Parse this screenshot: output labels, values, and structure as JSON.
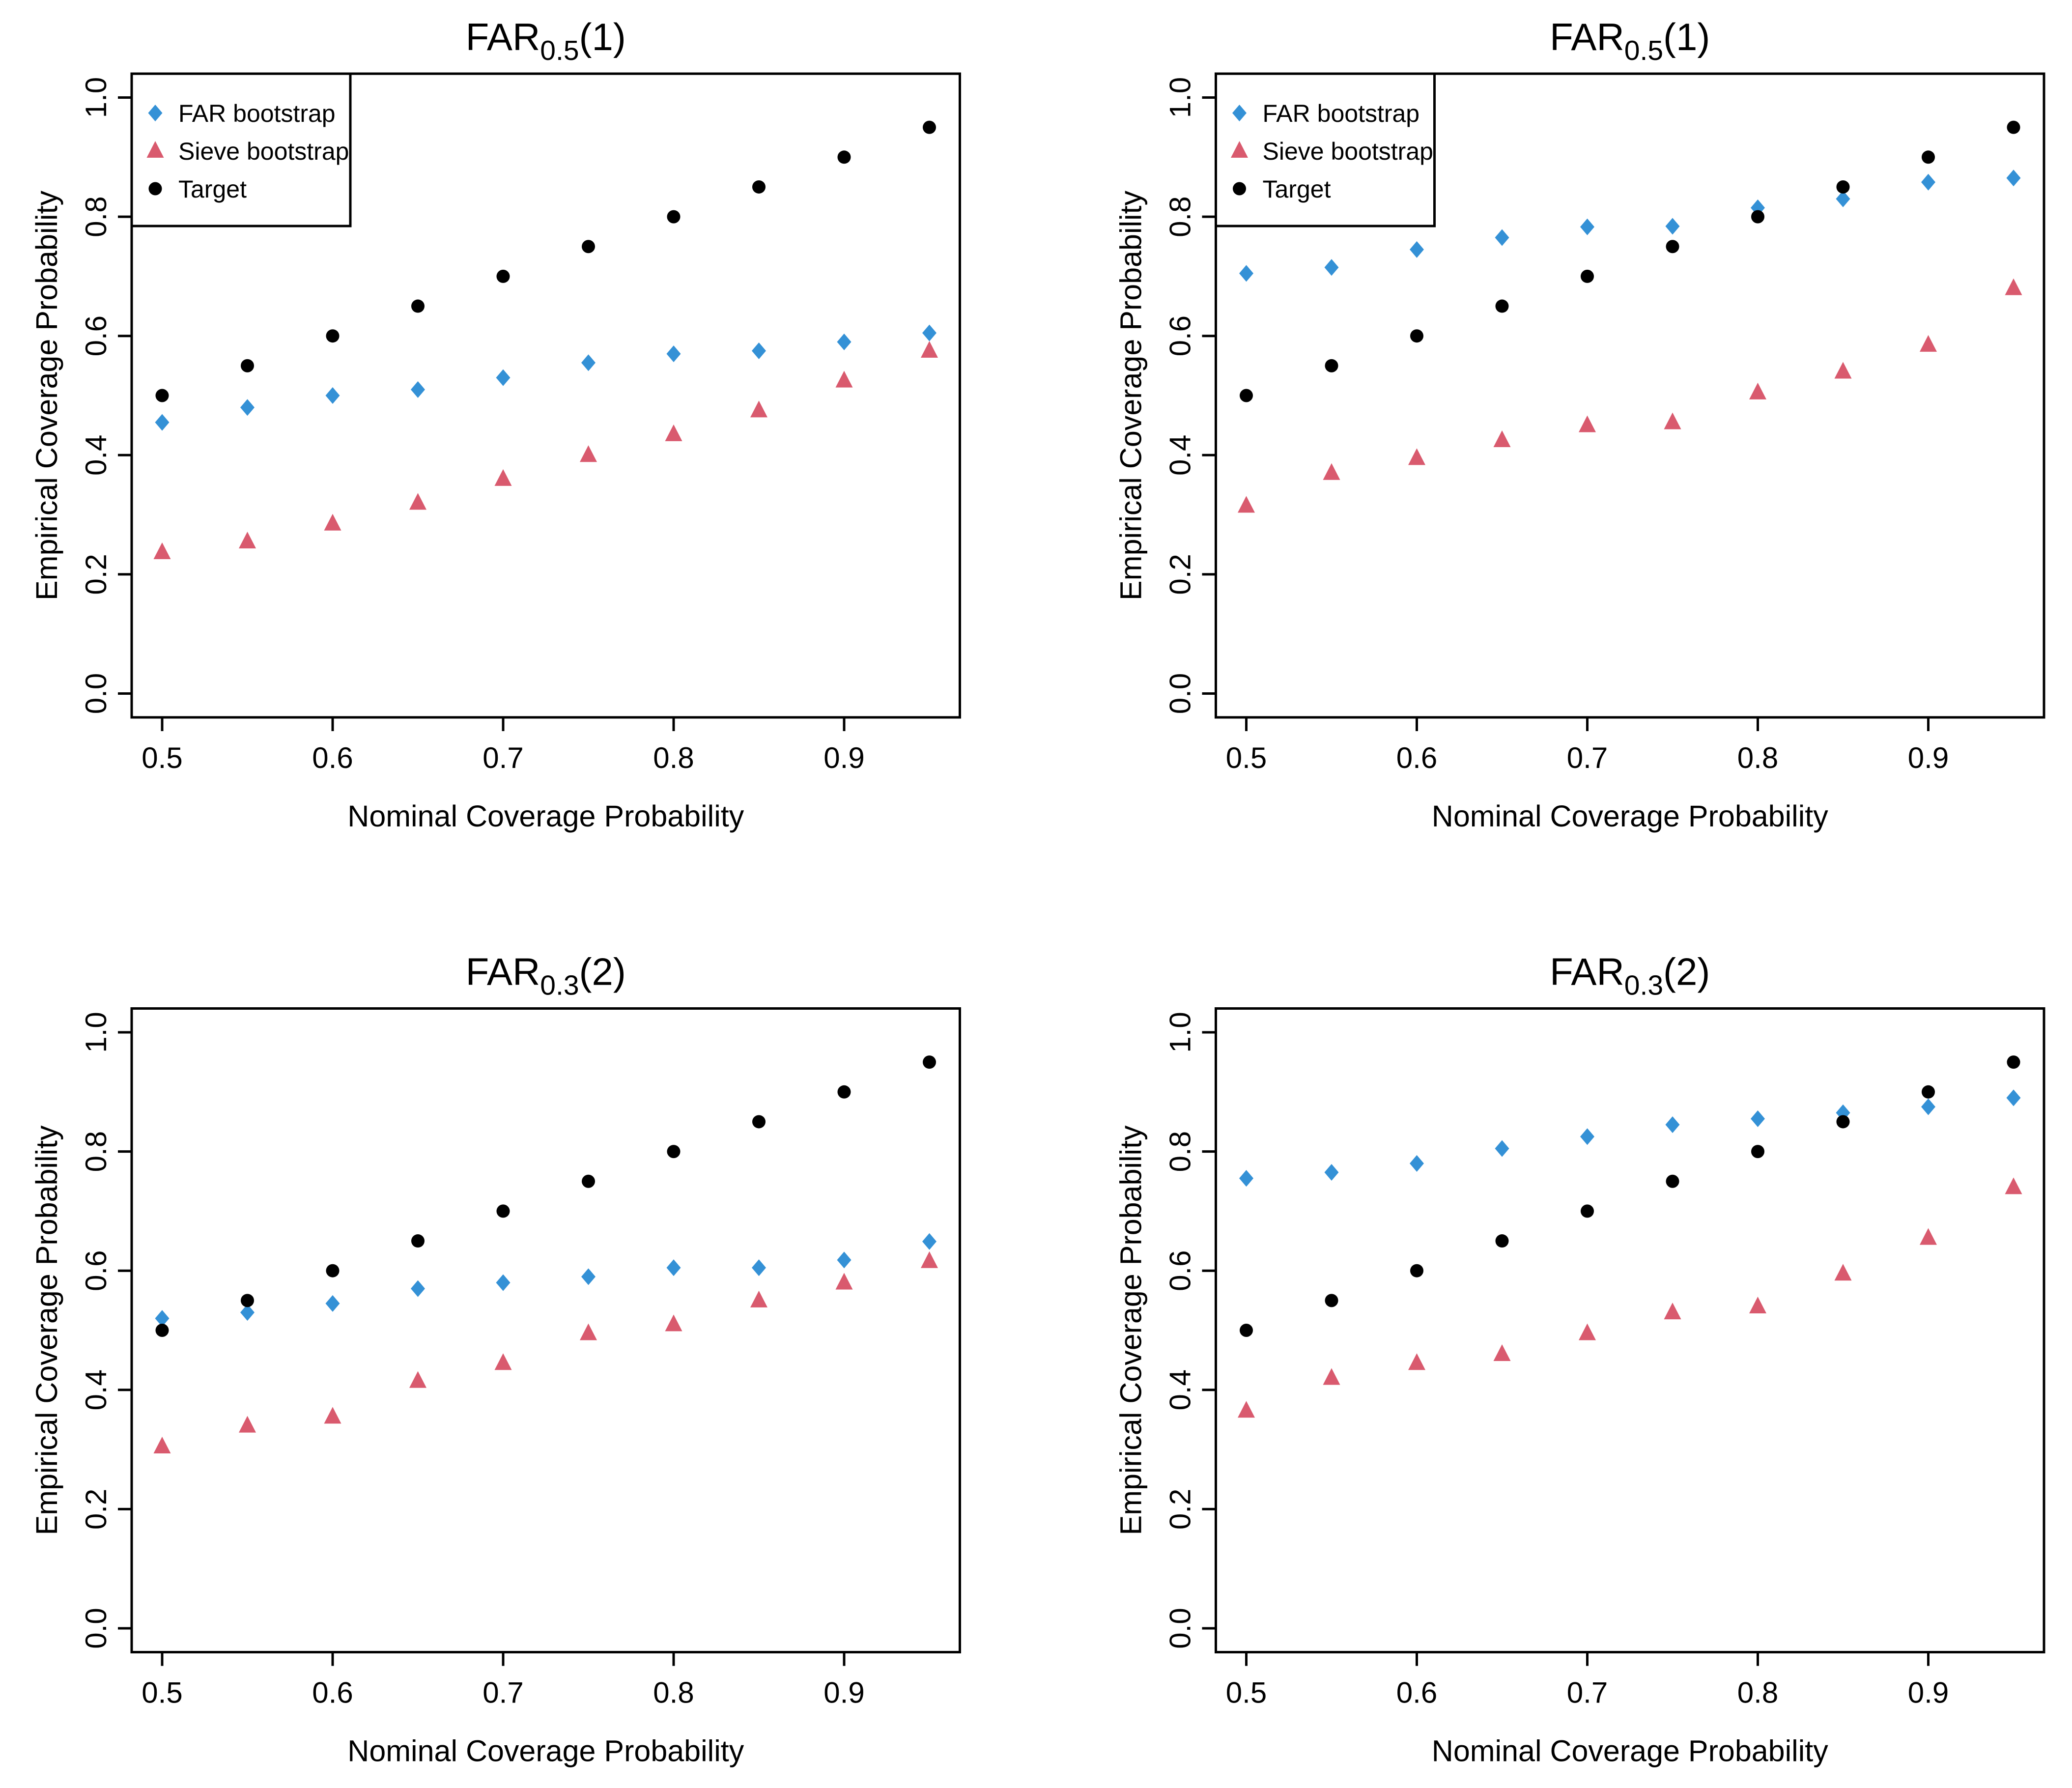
{
  "figure": {
    "description": "2x2 grid of scatter plots comparing empirical vs nominal coverage probability",
    "colors": {
      "far_bootstrap": "#3491D6",
      "sieve_bootstrap": "#D95A6E",
      "target": "#000000",
      "axis": "#000000",
      "background": "#ffffff"
    }
  },
  "chart_data": [
    {
      "type": "scatter",
      "title": {
        "main": "FAR",
        "sub": "0.5",
        "arg": "(1)"
      },
      "xlabel": "Nominal Coverage Probability",
      "ylabel": "Empirical Coverage Probability",
      "x": [
        0.5,
        0.55,
        0.6,
        0.65,
        0.7,
        0.75,
        0.8,
        0.85,
        0.9,
        0.95
      ],
      "series": [
        {
          "name": "FAR bootstrap",
          "marker": "diamond",
          "color": "#3491D6",
          "values": [
            0.455,
            0.48,
            0.5,
            0.51,
            0.53,
            0.555,
            0.57,
            0.575,
            0.59,
            0.605
          ]
        },
        {
          "name": "Sieve bootstrap",
          "marker": "triangle",
          "color": "#D95A6E",
          "values": [
            0.237,
            0.255,
            0.285,
            0.32,
            0.36,
            0.4,
            0.435,
            0.475,
            0.525,
            0.575
          ]
        },
        {
          "name": "Target",
          "marker": "circle",
          "color": "#000000",
          "values": [
            0.5,
            0.55,
            0.6,
            0.65,
            0.7,
            0.75,
            0.8,
            0.85,
            0.9,
            0.95
          ]
        }
      ],
      "xticks": [
        0.5,
        0.6,
        0.7,
        0.8,
        0.9
      ],
      "yticks": [
        0.0,
        0.2,
        0.4,
        0.6,
        0.8,
        1.0
      ],
      "xlim": [
        0.5,
        0.95
      ],
      "ylim": [
        0.0,
        1.0
      ],
      "grid": false,
      "legend": true,
      "legend_position": "top-left"
    },
    {
      "type": "scatter",
      "title": {
        "main": "FAR",
        "sub": "0.5",
        "arg": "(1)"
      },
      "xlabel": "Nominal Coverage Probability",
      "ylabel": "Empirical Coverage Probability",
      "x": [
        0.5,
        0.55,
        0.6,
        0.65,
        0.7,
        0.75,
        0.8,
        0.85,
        0.9,
        0.95
      ],
      "series": [
        {
          "name": "FAR bootstrap",
          "marker": "diamond",
          "color": "#3491D6",
          "values": [
            0.705,
            0.715,
            0.745,
            0.765,
            0.783,
            0.784,
            0.815,
            0.83,
            0.858,
            0.865
          ]
        },
        {
          "name": "Sieve bootstrap",
          "marker": "triangle",
          "color": "#D95A6E",
          "values": [
            0.315,
            0.37,
            0.395,
            0.425,
            0.45,
            0.455,
            0.505,
            0.54,
            0.585,
            0.68
          ]
        },
        {
          "name": "Target",
          "marker": "circle",
          "color": "#000000",
          "values": [
            0.5,
            0.55,
            0.6,
            0.65,
            0.7,
            0.75,
            0.8,
            0.85,
            0.9,
            0.95
          ]
        }
      ],
      "xticks": [
        0.5,
        0.6,
        0.7,
        0.8,
        0.9
      ],
      "yticks": [
        0.0,
        0.2,
        0.4,
        0.6,
        0.8,
        1.0
      ],
      "xlim": [
        0.5,
        0.95
      ],
      "ylim": [
        0.0,
        1.0
      ],
      "grid": false,
      "legend": true,
      "legend_position": "top-left"
    },
    {
      "type": "scatter",
      "title": {
        "main": "FAR",
        "sub": "0.3",
        "arg": "(2)"
      },
      "xlabel": "Nominal Coverage Probability",
      "ylabel": "Empirical Coverage Probability",
      "x": [
        0.5,
        0.55,
        0.6,
        0.65,
        0.7,
        0.75,
        0.8,
        0.85,
        0.9,
        0.95
      ],
      "series": [
        {
          "name": "FAR bootstrap",
          "marker": "diamond",
          "color": "#3491D6",
          "values": [
            0.52,
            0.53,
            0.545,
            0.57,
            0.58,
            0.59,
            0.605,
            0.605,
            0.618,
            0.649
          ]
        },
        {
          "name": "Sieve bootstrap",
          "marker": "triangle",
          "color": "#D95A6E",
          "values": [
            0.305,
            0.34,
            0.355,
            0.415,
            0.445,
            0.495,
            0.51,
            0.55,
            0.58,
            0.616
          ]
        },
        {
          "name": "Target",
          "marker": "circle",
          "color": "#000000",
          "values": [
            0.5,
            0.55,
            0.6,
            0.65,
            0.7,
            0.75,
            0.8,
            0.85,
            0.9,
            0.95
          ]
        }
      ],
      "xticks": [
        0.5,
        0.6,
        0.7,
        0.8,
        0.9
      ],
      "yticks": [
        0.0,
        0.2,
        0.4,
        0.6,
        0.8,
        1.0
      ],
      "xlim": [
        0.5,
        0.95
      ],
      "ylim": [
        0.0,
        1.0
      ],
      "grid": false,
      "legend": false,
      "legend_position": null
    },
    {
      "type": "scatter",
      "title": {
        "main": "FAR",
        "sub": "0.3",
        "arg": "(2)"
      },
      "xlabel": "Nominal Coverage Probability",
      "ylabel": "Empirical Coverage Probability",
      "x": [
        0.5,
        0.55,
        0.6,
        0.65,
        0.7,
        0.75,
        0.8,
        0.85,
        0.9,
        0.95
      ],
      "series": [
        {
          "name": "FAR bootstrap",
          "marker": "diamond",
          "color": "#3491D6",
          "values": [
            0.755,
            0.765,
            0.78,
            0.805,
            0.825,
            0.845,
            0.855,
            0.865,
            0.875,
            0.89
          ]
        },
        {
          "name": "Sieve bootstrap",
          "marker": "triangle",
          "color": "#D95A6E",
          "values": [
            0.365,
            0.42,
            0.445,
            0.46,
            0.495,
            0.53,
            0.54,
            0.595,
            0.655,
            0.74
          ]
        },
        {
          "name": "Target",
          "marker": "circle",
          "color": "#000000",
          "values": [
            0.5,
            0.55,
            0.6,
            0.65,
            0.7,
            0.75,
            0.8,
            0.85,
            0.9,
            0.95
          ]
        }
      ],
      "xticks": [
        0.5,
        0.6,
        0.7,
        0.8,
        0.9
      ],
      "yticks": [
        0.0,
        0.2,
        0.4,
        0.6,
        0.8,
        1.0
      ],
      "xlim": [
        0.5,
        0.95
      ],
      "ylim": [
        0.0,
        1.0
      ],
      "grid": false,
      "legend": false,
      "legend_position": null
    }
  ]
}
